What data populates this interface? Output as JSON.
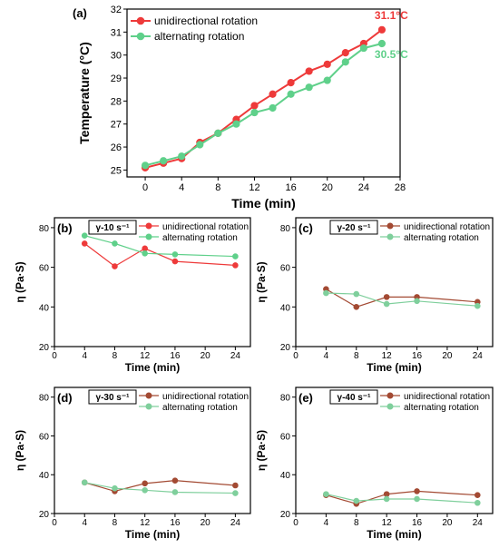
{
  "chart_data": [
    {
      "type": "line",
      "panel_label": "(a)",
      "xlabel": "Time (min)",
      "ylabel": "Temperature (°C)",
      "xlim": [
        -2,
        28
      ],
      "ylim": [
        24.7,
        32
      ],
      "xticks": [
        0,
        4,
        8,
        12,
        16,
        20,
        24,
        28
      ],
      "yticks": [
        25,
        26,
        27,
        28,
        29,
        30,
        31,
        32
      ],
      "legend_position": "top-left",
      "series": [
        {
          "name": "unidirectional rotation",
          "color": "#ee3a3a",
          "x": [
            0,
            2,
            4,
            6,
            8,
            10,
            12,
            14,
            16,
            18,
            20,
            22,
            24,
            26
          ],
          "y": [
            25.1,
            25.3,
            25.5,
            26.2,
            26.6,
            27.2,
            27.8,
            28.3,
            28.8,
            29.3,
            29.6,
            30.1,
            30.5,
            31.1
          ]
        },
        {
          "name": "alternating rotation",
          "color": "#5fd08a",
          "x": [
            0,
            2,
            4,
            6,
            8,
            10,
            12,
            14,
            16,
            18,
            20,
            22,
            24,
            26
          ],
          "y": [
            25.2,
            25.4,
            25.6,
            26.1,
            26.6,
            27.0,
            27.5,
            27.7,
            28.3,
            28.6,
            28.9,
            29.7,
            30.3,
            30.5
          ]
        }
      ],
      "annotations": [
        {
          "text": "31.1°C",
          "color": "#ee3a3a",
          "x": 26,
          "y": 31.1
        },
        {
          "text": "30.5°C",
          "color": "#5fd08a",
          "x": 26,
          "y": 30.5
        }
      ]
    },
    {
      "type": "line",
      "panel_label": "(b)",
      "shear_rate": "γ-10 s⁻¹",
      "xlabel": "Time (min)",
      "ylabel": "η (Pa·S)",
      "xlim": [
        0,
        26
      ],
      "ylim": [
        20,
        85
      ],
      "xticks": [
        0,
        4,
        8,
        12,
        16,
        20,
        24
      ],
      "yticks": [
        20,
        40,
        60,
        80
      ],
      "legend_position": "top-right",
      "series": [
        {
          "name": "unidirectional rotation",
          "color": "#ee3a3a",
          "x": [
            4,
            8,
            12,
            16,
            24
          ],
          "y": [
            72,
            60.5,
            69.5,
            63,
            61
          ]
        },
        {
          "name": "alternating rotation",
          "color": "#5fd08a",
          "x": [
            4,
            8,
            12,
            16,
            24
          ],
          "y": [
            76,
            72,
            67,
            66.5,
            65.5
          ]
        }
      ]
    },
    {
      "type": "line",
      "panel_label": "(c)",
      "shear_rate": "γ-20 s⁻¹",
      "xlabel": "Time (min)",
      "ylabel": "η (Pa·S)",
      "xlim": [
        0,
        26
      ],
      "ylim": [
        20,
        85
      ],
      "xticks": [
        0,
        4,
        8,
        12,
        16,
        20,
        24
      ],
      "yticks": [
        20,
        40,
        60,
        80
      ],
      "legend_position": "top-right",
      "series": [
        {
          "name": "unidirectional rotation",
          "color": "#a34a33",
          "x": [
            4,
            8,
            12,
            16,
            24
          ],
          "y": [
            49,
            40,
            45,
            45,
            42.5
          ]
        },
        {
          "name": "alternating rotation",
          "color": "#7fcf9c",
          "x": [
            4,
            8,
            12,
            16,
            24
          ],
          "y": [
            47,
            46.5,
            41.5,
            43,
            40.5
          ]
        }
      ]
    },
    {
      "type": "line",
      "panel_label": "(d)",
      "shear_rate": "γ-30 s⁻¹",
      "xlabel": "Time (min)",
      "ylabel": "η (Pa·S)",
      "xlim": [
        0,
        26
      ],
      "ylim": [
        20,
        85
      ],
      "xticks": [
        0,
        4,
        8,
        12,
        16,
        20,
        24
      ],
      "yticks": [
        20,
        40,
        60,
        80
      ],
      "legend_position": "top-right",
      "series": [
        {
          "name": "unidirectional rotation",
          "color": "#a34a33",
          "x": [
            4,
            8,
            12,
            16,
            24
          ],
          "y": [
            36,
            31.5,
            35.5,
            37,
            34.5
          ]
        },
        {
          "name": "alternating rotation",
          "color": "#7fcf9c",
          "x": [
            4,
            8,
            12,
            16,
            24
          ],
          "y": [
            36,
            33,
            32,
            31,
            30.5
          ]
        }
      ]
    },
    {
      "type": "line",
      "panel_label": "(e)",
      "shear_rate": "γ-40 s⁻¹",
      "xlabel": "Time (min)",
      "ylabel": "η (Pa·S)",
      "xlim": [
        0,
        26
      ],
      "ylim": [
        20,
        85
      ],
      "xticks": [
        0,
        4,
        8,
        12,
        16,
        20,
        24
      ],
      "yticks": [
        20,
        40,
        60,
        80
      ],
      "legend_position": "top-right",
      "series": [
        {
          "name": "unidirectional rotation",
          "color": "#a34a33",
          "x": [
            4,
            8,
            12,
            16,
            24
          ],
          "y": [
            29.5,
            25,
            30,
            31.5,
            29.5
          ]
        },
        {
          "name": "alternating rotation",
          "color": "#7fcf9c",
          "x": [
            4,
            8,
            12,
            16,
            24
          ],
          "y": [
            30,
            26.5,
            27.5,
            27.5,
            25.5
          ]
        }
      ]
    }
  ]
}
